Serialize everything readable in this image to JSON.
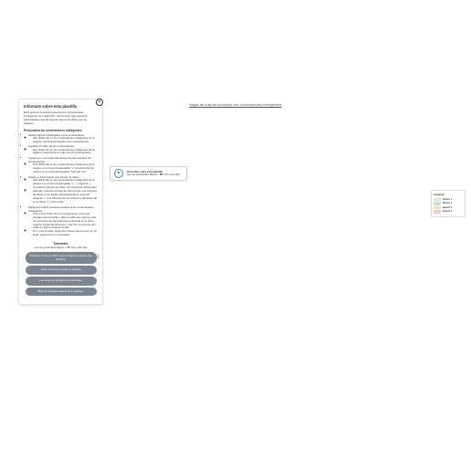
{
  "canvas": {
    "title": "Mapa de ruta del producto con contenedores inteligentes"
  },
  "sidebar": {
    "title": "Infórmate sobre esta plantilla",
    "intro": "Esta guía de producto presenta los contenedores inteligentes de Lucidchart, una función que organiza automáticamente las figuras según los datos que se asignen.",
    "section_head": "Personaliza los contenedores inteligentes",
    "bullets": [
      {
        "text": "Añade figuras individuales a los contenedores.",
        "subs": [
          "Haz doble clic en los contenedores inteligentes de la página y arrastra las figuras a los contenedores."
        ]
      },
      {
        "text": "Cambia el orden de los contenedores.",
        "subs": [
          "Haz doble clic en los contenedores inteligentes de la página y selecciona el orden de los contenedores."
        ]
      },
      {
        "text": "Agrupa por una segunda categoría para separar los contenedores.",
        "subs": [
          "Haz doble clic en los contenedores inteligentes de la página, en el menú desplegable \"+\" a la derecha del campo en el menú desplegable \"Agrupar por\"."
        ]
      },
      {
        "text": "Añade tu información a la fuente de datos.",
        "subs": [
          "Haz doble clic en los contenedores inteligentes de la página, en el menú desplegable \"+\". \"+ Figuras\" y completa tu fuente de datos con columnas adicionales.",
          "Además, muestra el título de columna de una columna de datos como figura, seleccionando el ícono de etiqueta \"+\" a la derecha de los campos y haciendo clic en el signo \"+\" junto a ella."
        ]
      },
      {
        "text": "Aplica los estilos predeterminados a los contenedores inteligentes.",
        "subs": [
          "Toca o haz doble clic en una figura de modo que puedas seleccionarla y elige el estilo que quieres usar. Ve a la barra de herramientas contextual en la parte superior izquierda del lienzo y haz clic en el botón del estilo de figura predeterminado.",
          "Si no ves el estilo, sigue los mismos pasos pero, en su lugar, selecciona un contenedor."
        ]
      }
    ],
    "tutorials": {
      "head": "Tutoriales",
      "sub": "(ver sin presionado Mayús + ⌘/ Ctrl y haz clic)",
      "buttons": [
        "Vincula la fuente de datos para el mapa de ruta de este producto",
        "Obtén información sobre el formato",
        "Lee sobre los formatos condicionales",
        "Mira los tutoriales básicos de Lucidchart"
      ]
    }
  },
  "callout": {
    "title": "Infórmate sobre esta plantilla",
    "sub_pre": "(ver sin presionado Mayús + ",
    "kbd": "⌘",
    "sub_post": "/ Ctrl y haz clic)"
  },
  "legend": {
    "title": "Leyenda",
    "items": [
      {
        "label": "Equipo 1",
        "color": "#d9e9c8"
      },
      {
        "label": "Equipo 2",
        "color": "#bfe3e0"
      },
      {
        "label": "Equipo 3",
        "color": "#f6e3a3"
      },
      {
        "label": "Equipo 4",
        "color": "#f3c9cf"
      }
    ]
  },
  "icons": {
    "close": "✕",
    "download": "▼",
    "cursor": "☟"
  }
}
